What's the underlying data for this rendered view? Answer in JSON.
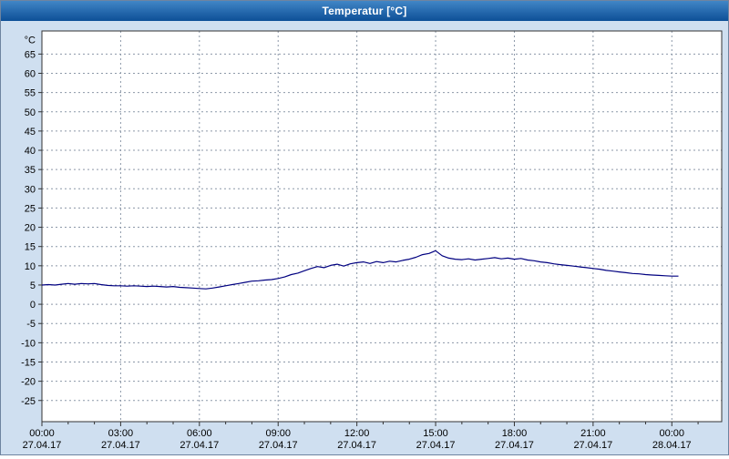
{
  "window": {
    "title": "Temperatur [°C]"
  },
  "colors": {
    "titlebar_top": "#4186c6",
    "titlebar_bottom": "#0d4f97",
    "background": "#cfdff0",
    "plot_bg": "#ffffff",
    "grid": "#8c98a8",
    "axis": "#333333",
    "line": "#000080",
    "text": "#000000"
  },
  "chart_data": {
    "type": "line",
    "title": "Temperatur [°C]",
    "xlabel": "",
    "ylabel": "°C",
    "ylim": [
      -30.5,
      71
    ],
    "xlim_hours": [
      0,
      25.9
    ],
    "grid": "dashed",
    "legend": "none",
    "yticks": [
      65,
      60,
      55,
      50,
      45,
      40,
      35,
      30,
      25,
      20,
      15,
      10,
      5,
      0,
      -5,
      -10,
      -15,
      -20,
      -25
    ],
    "xticks": [
      {
        "hour": 0,
        "time": "00:00",
        "date": "27.04.17"
      },
      {
        "hour": 3,
        "time": "03:00",
        "date": "27.04.17"
      },
      {
        "hour": 6,
        "time": "06:00",
        "date": "27.04.17"
      },
      {
        "hour": 9,
        "time": "09:00",
        "date": "27.04.17"
      },
      {
        "hour": 12,
        "time": "12:00",
        "date": "27.04.17"
      },
      {
        "hour": 15,
        "time": "15:00",
        "date": "27.04.17"
      },
      {
        "hour": 18,
        "time": "18:00",
        "date": "27.04.17"
      },
      {
        "hour": 21,
        "time": "21:00",
        "date": "27.04.17"
      },
      {
        "hour": 24,
        "time": "00:00",
        "date": "28.04.17"
      }
    ],
    "series": [
      {
        "name": "Temperatur",
        "color": "#000080",
        "x_start_hours": 0,
        "x_step_hours": 0.25,
        "values": [
          5.0,
          5.1,
          5.0,
          5.2,
          5.4,
          5.2,
          5.4,
          5.3,
          5.4,
          5.1,
          4.9,
          4.8,
          4.8,
          4.7,
          4.8,
          4.7,
          4.6,
          4.7,
          4.6,
          4.5,
          4.6,
          4.4,
          4.3,
          4.2,
          4.1,
          4.0,
          4.2,
          4.5,
          4.8,
          5.1,
          5.4,
          5.7,
          6.0,
          6.1,
          6.3,
          6.4,
          6.7,
          7.1,
          7.7,
          8.1,
          8.7,
          9.3,
          9.8,
          9.5,
          10.1,
          10.4,
          9.9,
          10.5,
          10.8,
          11.0,
          10.6,
          11.1,
          10.8,
          11.2,
          11.0,
          11.4,
          11.7,
          12.2,
          12.9,
          13.2,
          13.9,
          12.6,
          12.0,
          11.7,
          11.6,
          11.8,
          11.5,
          11.7,
          11.9,
          12.1,
          11.8,
          12.0,
          11.7,
          11.9,
          11.5,
          11.3,
          11.0,
          10.8,
          10.5,
          10.3,
          10.1,
          9.9,
          9.7,
          9.5,
          9.3,
          9.1,
          8.8,
          8.6,
          8.4,
          8.2,
          8.0,
          7.9,
          7.7,
          7.6,
          7.5,
          7.4,
          7.3,
          7.3
        ]
      }
    ]
  }
}
